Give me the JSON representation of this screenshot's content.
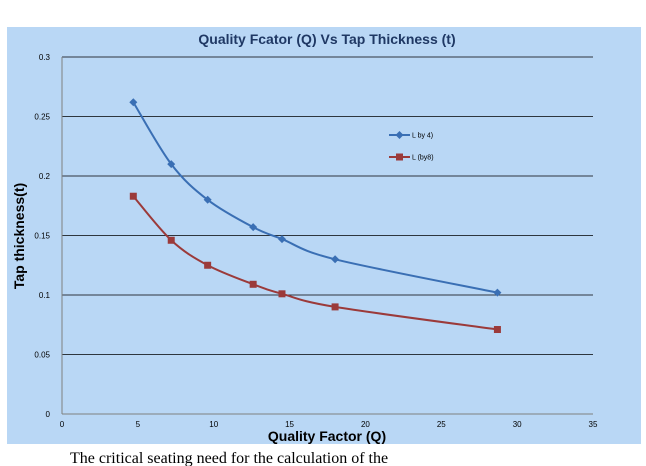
{
  "chart_data": {
    "type": "line",
    "title": "Quality Fcator (Q) Vs Tap Thickness (t)",
    "xlabel": "Quality Factor (Q)",
    "ylabel": "Tap thickness(t)",
    "xlim": [
      0,
      35
    ],
    "ylim": [
      0,
      0.3
    ],
    "xticks": [
      0,
      5,
      10,
      15,
      20,
      25,
      30,
      35
    ],
    "yticks": [
      0,
      0.05,
      0.1,
      0.15,
      0.2,
      0.25,
      0.3
    ],
    "grid": "horizontal",
    "legend_position": "right",
    "series": [
      {
        "name": "L by 4)",
        "color": "#3a6fb4",
        "marker": "diamond",
        "x": [
          4.7,
          7.2,
          9.6,
          12.6,
          14.5,
          18.0,
          28.7
        ],
        "y": [
          0.262,
          0.21,
          0.18,
          0.157,
          0.147,
          0.13,
          0.102
        ]
      },
      {
        "name": "L (by8)",
        "color": "#9b3a3a",
        "marker": "square",
        "x": [
          4.7,
          7.2,
          9.6,
          12.6,
          14.5,
          18.0,
          28.7
        ],
        "y": [
          0.183,
          0.146,
          0.125,
          0.109,
          0.101,
          0.09,
          0.071
        ]
      }
    ]
  },
  "caption_text": "The critical seating need for the calculation of the"
}
